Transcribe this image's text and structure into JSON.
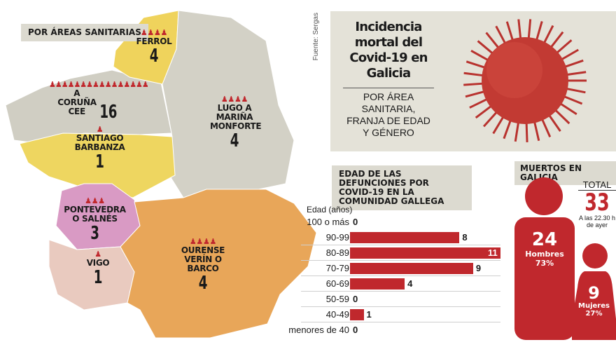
{
  "colors": {
    "red": "#c0282d",
    "gray": "#d0cec3",
    "yellow": "#efd35c",
    "pink": "#d99ac4",
    "light_pink": "#e9cabf",
    "orange": "#e8a659",
    "panel": "#e4e2d8"
  },
  "map": {
    "title": "POR ÁREAS SANITARIAS",
    "areas": [
      {
        "name": "FERROL",
        "count": "4"
      },
      {
        "name": "A CORUÑA CEE",
        "count": "16"
      },
      {
        "name": "LUGO A MARIÑA MONFORTE",
        "count": "4"
      },
      {
        "name": "SANTIAGO BARBANZA",
        "count": "1"
      },
      {
        "name": "PONTEVEDRA O SALNÉS",
        "count": "3"
      },
      {
        "name": "VIGO",
        "count": "1"
      },
      {
        "name": "OURENSE VERÍN O BARCO",
        "count": "4"
      }
    ]
  },
  "header": {
    "source": "Fuente: Sergas",
    "title": "Incidencia mortal del Covid-19 en Galicia",
    "subtitle": "POR ÁREA SANITARIA, FRANJA DE EDAD Y GÉNERO"
  },
  "chart_data": {
    "type": "bar",
    "orientation": "horizontal",
    "title": "EDAD DE LAS DEFUNCIONES POR COVID-19 EN LA COMUNIDAD GALLEGA",
    "ylabel": "Edad (años)",
    "categories": [
      "100 o más",
      "90-99",
      "80-89",
      "70-79",
      "60-69",
      "50-59",
      "40-49",
      "menores de 40"
    ],
    "values": [
      0,
      8,
      11,
      9,
      4,
      0,
      1,
      0
    ],
    "xlim": [
      0,
      11
    ]
  },
  "gender": {
    "title": "MUERTOS EN GALICIA",
    "total_label": "TOTAL",
    "total": "33",
    "time_note": "A las 22.30 h de ayer",
    "men": {
      "count": "24",
      "label": "Hombres",
      "pct": "73%",
      "value": 24
    },
    "women": {
      "count": "9",
      "label": "Mujeres",
      "pct": "27%",
      "value": 9
    }
  }
}
